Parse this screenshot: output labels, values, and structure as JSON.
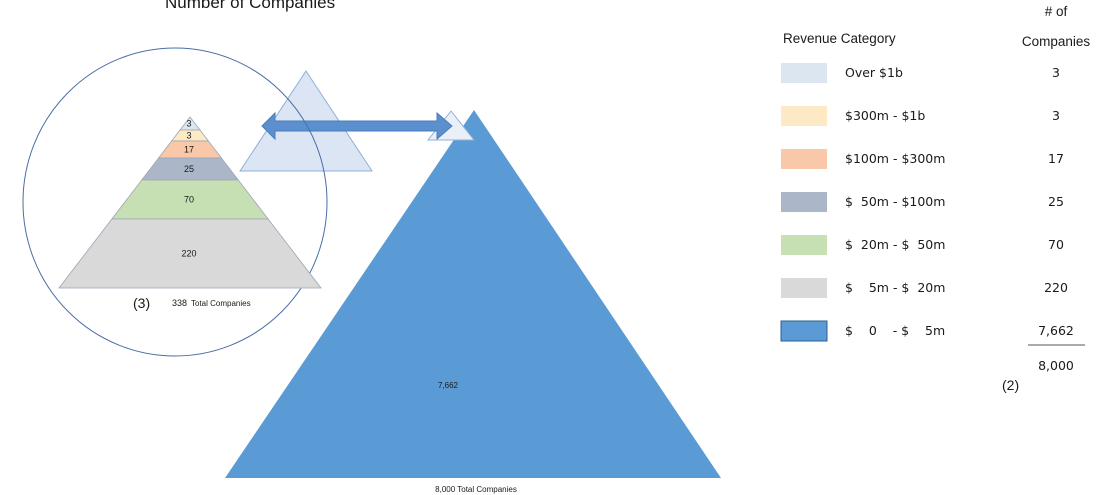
{
  "title": "Number of Companies",
  "pyramid_small": {
    "levels": [
      {
        "value": "3",
        "color": "#dce6f1"
      },
      {
        "value": "3",
        "color": "#fde9c4"
      },
      {
        "value": "17",
        "color": "#f8c8a8"
      },
      {
        "value": "25",
        "color": "#abb7c8"
      },
      {
        "value": "70",
        "color": "#c6e0b4"
      },
      {
        "value": "220",
        "color": "#d9d9d9"
      }
    ],
    "total_number": "338",
    "total_label": "Total Companies",
    "note": "(3)"
  },
  "pyramid_large": {
    "value": "7,662",
    "color": "#5b9bd5",
    "total_label": "8,000  Total Companies"
  },
  "legend": {
    "category_header": "Revenue Category",
    "count_header_line1": "# of",
    "count_header_line2": "Companies",
    "rows": [
      {
        "label": "Over $1b",
        "count": "3",
        "color": "#dce6f1"
      },
      {
        "label": "$300m - $1b",
        "count": "3",
        "color": "#fde9c4"
      },
      {
        "label": "$100m - $300m",
        "count": "17",
        "color": "#f8c8a8"
      },
      {
        "label": "$  50m - $100m",
        "count": "25",
        "color": "#abb7c8"
      },
      {
        "label": "$  20m - $  50m",
        "count": "70",
        "color": "#c6e0b4"
      },
      {
        "label": "$    5m - $  20m",
        "count": "220",
        "color": "#d9d9d9"
      },
      {
        "label": "$    0    - $    5m",
        "count": "7,662",
        "color": "#5b9bd5"
      }
    ],
    "total": "8,000",
    "note": "(2)"
  },
  "colors": {
    "circle_stroke": "#4a6fa5",
    "arrow": "#5b8fce",
    "triangle_light": "#dbe5f3",
    "triangle_light_stroke": "#8fb0d8"
  }
}
